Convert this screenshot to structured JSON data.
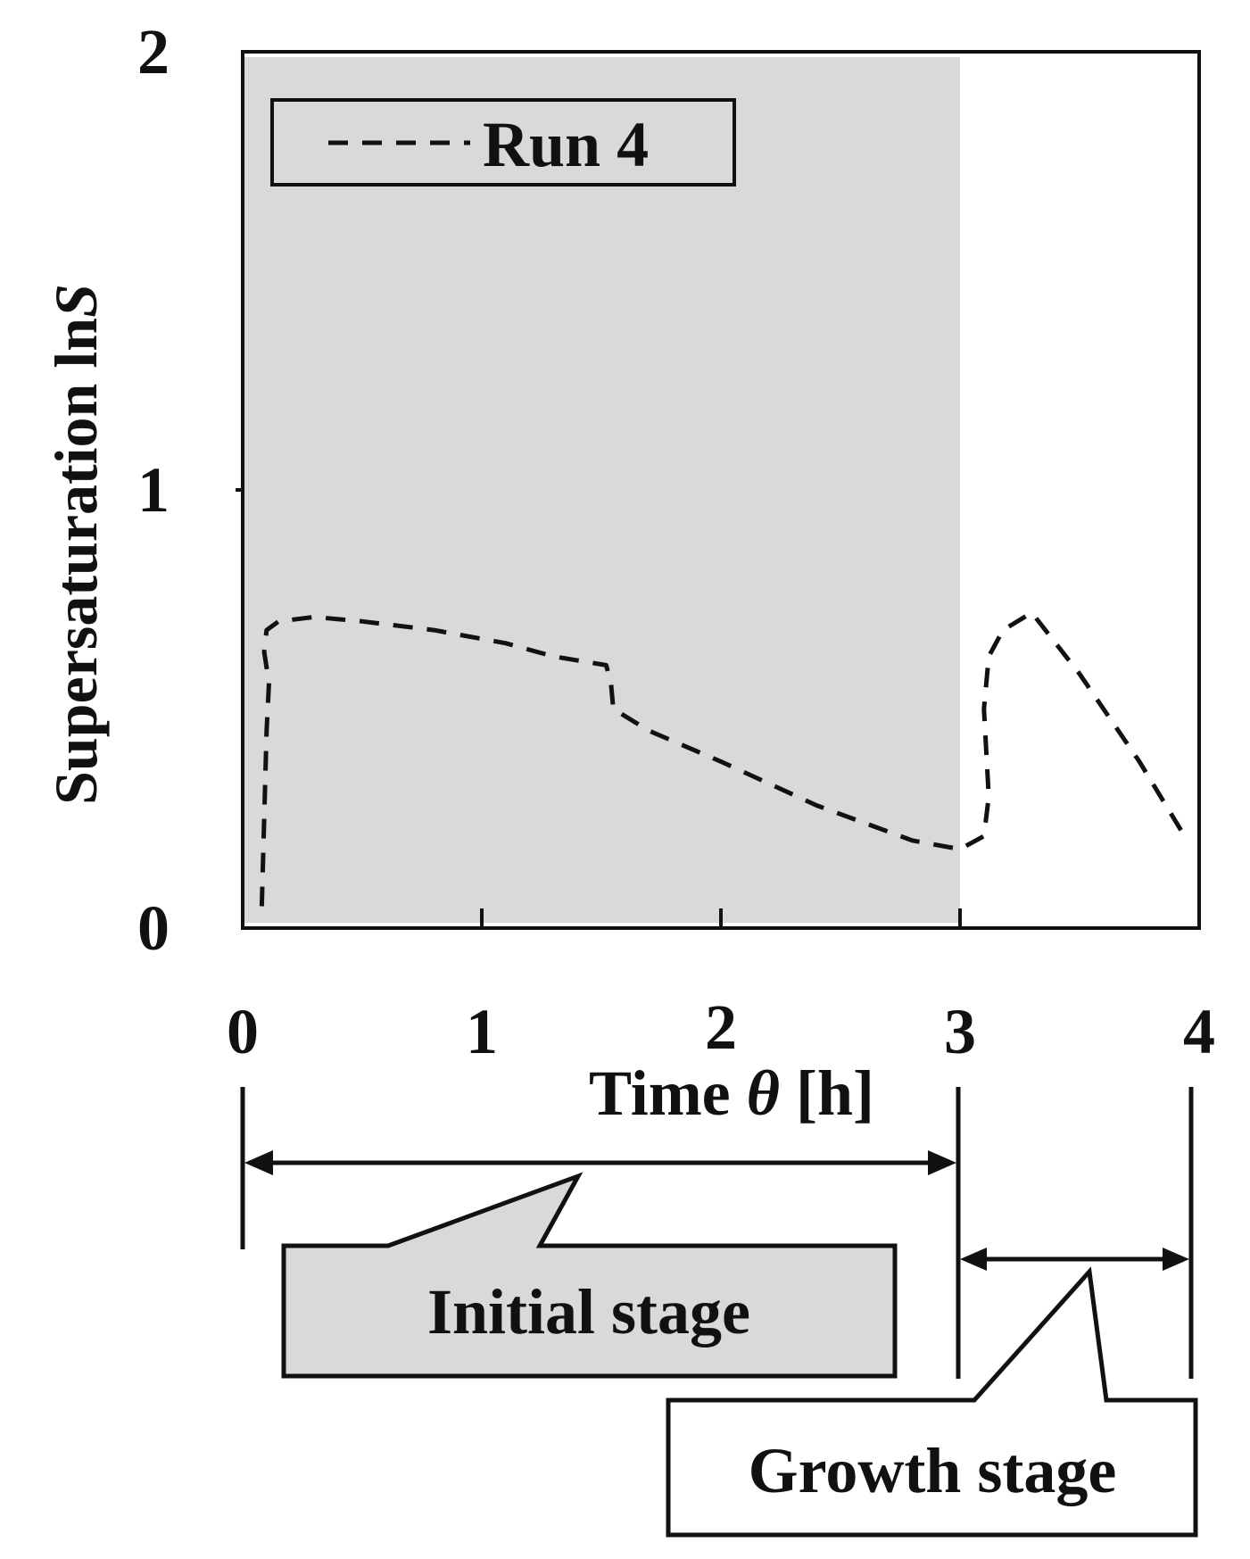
{
  "chart_data": {
    "type": "line",
    "ylabel_main": "Supersaturation ln",
    "ylabel_italic": "S",
    "xlabel_main": "Time ",
    "xlabel_italic": "θ",
    "xlabel_unit": " [h]",
    "xlim": [
      0,
      4
    ],
    "ylim": [
      0,
      2
    ],
    "x_ticks": [
      0,
      1,
      2,
      3,
      4
    ],
    "y_ticks": [
      0,
      1,
      2
    ],
    "y_tick_labels": [
      "0",
      "1",
      "2"
    ],
    "x_tick_labels": [
      "0",
      "1",
      "2",
      "3",
      "4"
    ],
    "grid": false,
    "legend_position": "top-left",
    "shaded_region": {
      "x_start": 0,
      "x_end": 3,
      "color": "#d9d9d9"
    },
    "series": [
      {
        "name": "Run 4",
        "style": "dashed",
        "color": "#111111",
        "points": [
          [
            0.08,
            0.05
          ],
          [
            0.09,
            0.25
          ],
          [
            0.1,
            0.45
          ],
          [
            0.11,
            0.56
          ],
          [
            0.09,
            0.63
          ],
          [
            0.1,
            0.68
          ],
          [
            0.15,
            0.7
          ],
          [
            0.3,
            0.71
          ],
          [
            0.5,
            0.7
          ],
          [
            0.8,
            0.68
          ],
          [
            1.1,
            0.65
          ],
          [
            1.3,
            0.62
          ],
          [
            1.52,
            0.6
          ],
          [
            1.54,
            0.56
          ],
          [
            1.55,
            0.5
          ],
          [
            1.7,
            0.45
          ],
          [
            2.0,
            0.38
          ],
          [
            2.4,
            0.28
          ],
          [
            2.8,
            0.2
          ],
          [
            3.0,
            0.18
          ],
          [
            3.1,
            0.21
          ],
          [
            3.12,
            0.3
          ],
          [
            3.1,
            0.5
          ],
          [
            3.12,
            0.62
          ],
          [
            3.18,
            0.68
          ],
          [
            3.3,
            0.72
          ],
          [
            3.5,
            0.58
          ],
          [
            3.75,
            0.38
          ],
          [
            3.95,
            0.2
          ]
        ]
      }
    ]
  },
  "annotations": {
    "initial_stage": "Initial stage",
    "growth_stage": "Growth stage"
  },
  "colors": {
    "shade": "#d9d9d9",
    "ink": "#111111"
  }
}
